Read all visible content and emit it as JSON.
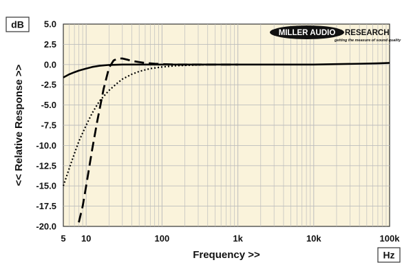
{
  "chart_data": {
    "type": "line",
    "xscale": "log",
    "xlim": [
      5,
      100000
    ],
    "ylim": [
      -20,
      5
    ],
    "xlabel": "Frequency >>",
    "ylabel": "<< Relative Response >>",
    "x_unit_label": "Hz",
    "y_unit_label": "dB",
    "xticks": [
      {
        "value": 5,
        "label": "5"
      },
      {
        "value": 10,
        "label": "10"
      },
      {
        "value": 100,
        "label": "100"
      },
      {
        "value": 1000,
        "label": "1k"
      },
      {
        "value": 10000,
        "label": "10k"
      },
      {
        "value": 100000,
        "label": "100k"
      }
    ],
    "yticks": [
      {
        "value": 5,
        "label": "5.0"
      },
      {
        "value": 2.5,
        "label": "2.5"
      },
      {
        "value": 0,
        "label": "0.0"
      },
      {
        "value": -2.5,
        "label": "-2.5"
      },
      {
        "value": -5,
        "label": "-5.0"
      },
      {
        "value": -7.5,
        "label": "-7.5"
      },
      {
        "value": -10,
        "label": "-10.0"
      },
      {
        "value": -12.5,
        "label": "-12.5"
      },
      {
        "value": -15,
        "label": "-15.0"
      },
      {
        "value": -17.5,
        "label": "-17.5"
      },
      {
        "value": -20,
        "label": "-20.0"
      }
    ],
    "grid": true,
    "series": [
      {
        "style": "solid",
        "x": [
          5,
          6,
          7,
          8,
          10,
          12,
          15,
          20,
          30,
          50,
          100,
          200,
          1000,
          5000,
          10000,
          20000,
          40000,
          70000,
          100000
        ],
        "y": [
          -1.6,
          -1.2,
          -0.95,
          -0.75,
          -0.5,
          -0.3,
          -0.15,
          -0.05,
          0,
          0,
          0,
          0,
          0,
          0,
          0,
          0.05,
          0.1,
          0.15,
          0.2
        ]
      },
      {
        "style": "dashed",
        "x": [
          8,
          9,
          10,
          12,
          14,
          17,
          20,
          23,
          26,
          30,
          35,
          40,
          50,
          60,
          80,
          100,
          150,
          200,
          500,
          1000
        ],
        "y": [
          -19.5,
          -17.5,
          -15.0,
          -10.5,
          -7.0,
          -3.0,
          -0.4,
          0.5,
          0.75,
          0.75,
          0.6,
          0.45,
          0.3,
          0.2,
          0.1,
          0.05,
          0,
          0,
          0,
          0
        ]
      },
      {
        "style": "dotted",
        "x": [
          5,
          6,
          7,
          8,
          10,
          12,
          15,
          20,
          25,
          30,
          40,
          50,
          70,
          100,
          150,
          200,
          300,
          500,
          1000
        ],
        "y": [
          -15.0,
          -12.8,
          -11.0,
          -9.5,
          -7.5,
          -6.0,
          -4.5,
          -3.2,
          -2.4,
          -1.8,
          -1.2,
          -0.85,
          -0.5,
          -0.3,
          -0.15,
          -0.1,
          -0.05,
          0,
          0
        ]
      }
    ]
  },
  "logo": {
    "brand_left": "MILLER AUDIO",
    "brand_right": "RESEARCH",
    "tagline": "getting the measure of sound quality"
  },
  "colors": {
    "plot_background": "#faf3db",
    "grid": "#bdbdbd",
    "line": "#000000"
  }
}
